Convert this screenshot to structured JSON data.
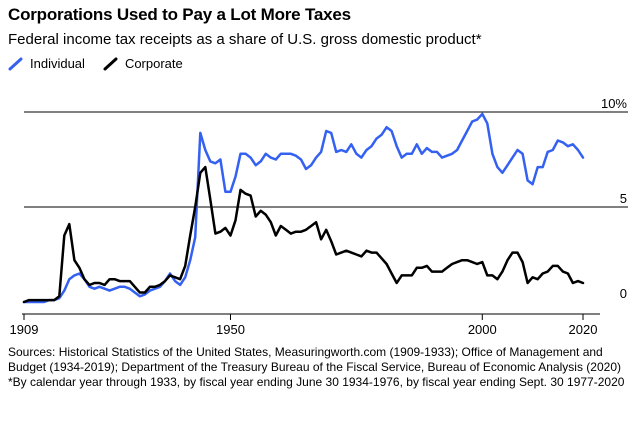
{
  "title": "Corporations Used to Pay a Lot More Taxes",
  "subtitle": "Federal income tax receipts as a share of U.S. gross domestic product*",
  "legend": [
    {
      "label": "Individual",
      "color": "#3461f2"
    },
    {
      "label": "Corporate",
      "color": "#000000"
    }
  ],
  "footer": {
    "sources": "Sources: Historical Statistics of the United States, Measuringworth.com (1909-1933); Office of Management and Budget (1934-2019); Department of the Treasury Bureau of the Fiscal Service, Bureau of Economic Analysis (2020)",
    "note": "*By calendar year through 1933, by fiscal year ending June 30 1934-1976, by fiscal year ending Sept. 30 1977-2020"
  },
  "chart_data": {
    "type": "line",
    "title": "Corporations Used to Pay a Lot More Taxes",
    "xlabel": "",
    "ylabel": "",
    "xlim": [
      1909,
      2020
    ],
    "ylim": [
      0,
      10
    ],
    "x_ticks": [
      {
        "value": 1909,
        "label": "1909"
      },
      {
        "value": 1950,
        "label": "1950"
      },
      {
        "value": 2000,
        "label": "2000"
      },
      {
        "value": 2020,
        "label": "2020"
      }
    ],
    "y_ticks": [
      {
        "value": 0,
        "label": "0"
      },
      {
        "value": 5,
        "label": "5"
      },
      {
        "value": 10,
        "label": "10%"
      }
    ],
    "series": [
      {
        "name": "Individual",
        "color": "#3461f2",
        "points": [
          [
            1909,
            0.0
          ],
          [
            1910,
            0.0
          ],
          [
            1911,
            0.0
          ],
          [
            1912,
            0.0
          ],
          [
            1913,
            0.0
          ],
          [
            1914,
            0.1
          ],
          [
            1915,
            0.1
          ],
          [
            1916,
            0.2
          ],
          [
            1917,
            0.6
          ],
          [
            1918,
            1.2
          ],
          [
            1919,
            1.4
          ],
          [
            1920,
            1.5
          ],
          [
            1921,
            1.2
          ],
          [
            1922,
            0.8
          ],
          [
            1923,
            0.7
          ],
          [
            1924,
            0.8
          ],
          [
            1925,
            0.7
          ],
          [
            1926,
            0.6
          ],
          [
            1927,
            0.7
          ],
          [
            1928,
            0.8
          ],
          [
            1929,
            0.8
          ],
          [
            1930,
            0.7
          ],
          [
            1931,
            0.5
          ],
          [
            1932,
            0.3
          ],
          [
            1933,
            0.4
          ],
          [
            1934,
            0.6
          ],
          [
            1935,
            0.7
          ],
          [
            1936,
            0.8
          ],
          [
            1937,
            1.1
          ],
          [
            1938,
            1.5
          ],
          [
            1939,
            1.1
          ],
          [
            1940,
            0.9
          ],
          [
            1941,
            1.3
          ],
          [
            1942,
            2.2
          ],
          [
            1943,
            3.4
          ],
          [
            1944,
            8.9
          ],
          [
            1945,
            8.0
          ],
          [
            1946,
            7.4
          ],
          [
            1947,
            7.3
          ],
          [
            1948,
            7.5
          ],
          [
            1949,
            5.8
          ],
          [
            1950,
            5.8
          ],
          [
            1951,
            6.6
          ],
          [
            1952,
            7.8
          ],
          [
            1953,
            7.8
          ],
          [
            1954,
            7.6
          ],
          [
            1955,
            7.2
          ],
          [
            1956,
            7.4
          ],
          [
            1957,
            7.8
          ],
          [
            1958,
            7.6
          ],
          [
            1959,
            7.5
          ],
          [
            1960,
            7.8
          ],
          [
            1961,
            7.8
          ],
          [
            1962,
            7.8
          ],
          [
            1963,
            7.7
          ],
          [
            1964,
            7.5
          ],
          [
            1965,
            7.0
          ],
          [
            1966,
            7.2
          ],
          [
            1967,
            7.6
          ],
          [
            1968,
            7.9
          ],
          [
            1969,
            9.0
          ],
          [
            1970,
            8.9
          ],
          [
            1971,
            7.9
          ],
          [
            1972,
            8.0
          ],
          [
            1973,
            7.9
          ],
          [
            1974,
            8.3
          ],
          [
            1975,
            7.8
          ],
          [
            1976,
            7.6
          ],
          [
            1977,
            8.0
          ],
          [
            1978,
            8.2
          ],
          [
            1979,
            8.6
          ],
          [
            1980,
            8.8
          ],
          [
            1981,
            9.2
          ],
          [
            1982,
            9.0
          ],
          [
            1983,
            8.2
          ],
          [
            1984,
            7.6
          ],
          [
            1985,
            7.8
          ],
          [
            1986,
            7.8
          ],
          [
            1987,
            8.3
          ],
          [
            1988,
            7.8
          ],
          [
            1989,
            8.1
          ],
          [
            1990,
            7.9
          ],
          [
            1991,
            7.9
          ],
          [
            1992,
            7.6
          ],
          [
            1993,
            7.7
          ],
          [
            1994,
            7.8
          ],
          [
            1995,
            8.0
          ],
          [
            1996,
            8.5
          ],
          [
            1997,
            9.0
          ],
          [
            1998,
            9.5
          ],
          [
            1999,
            9.6
          ],
          [
            2000,
            9.9
          ],
          [
            2001,
            9.4
          ],
          [
            2002,
            7.8
          ],
          [
            2003,
            7.1
          ],
          [
            2004,
            6.8
          ],
          [
            2005,
            7.2
          ],
          [
            2006,
            7.6
          ],
          [
            2007,
            8.0
          ],
          [
            2008,
            7.8
          ],
          [
            2009,
            6.4
          ],
          [
            2010,
            6.2
          ],
          [
            2011,
            7.1
          ],
          [
            2012,
            7.1
          ],
          [
            2013,
            7.9
          ],
          [
            2014,
            8.0
          ],
          [
            2015,
            8.5
          ],
          [
            2016,
            8.4
          ],
          [
            2017,
            8.2
          ],
          [
            2018,
            8.3
          ],
          [
            2019,
            8.0
          ],
          [
            2020,
            7.6
          ]
        ]
      },
      {
        "name": "Corporate",
        "color": "#000000",
        "points": [
          [
            1909,
            0.0
          ],
          [
            1910,
            0.1
          ],
          [
            1911,
            0.1
          ],
          [
            1912,
            0.1
          ],
          [
            1913,
            0.1
          ],
          [
            1914,
            0.1
          ],
          [
            1915,
            0.1
          ],
          [
            1916,
            0.3
          ],
          [
            1917,
            3.5
          ],
          [
            1918,
            4.1
          ],
          [
            1919,
            2.2
          ],
          [
            1920,
            1.8
          ],
          [
            1921,
            1.2
          ],
          [
            1922,
            0.9
          ],
          [
            1923,
            1.0
          ],
          [
            1924,
            1.0
          ],
          [
            1925,
            0.9
          ],
          [
            1926,
            1.2
          ],
          [
            1927,
            1.2
          ],
          [
            1928,
            1.1
          ],
          [
            1929,
            1.1
          ],
          [
            1930,
            1.1
          ],
          [
            1931,
            0.8
          ],
          [
            1932,
            0.5
          ],
          [
            1933,
            0.5
          ],
          [
            1934,
            0.8
          ],
          [
            1935,
            0.8
          ],
          [
            1936,
            0.9
          ],
          [
            1937,
            1.1
          ],
          [
            1938,
            1.4
          ],
          [
            1939,
            1.3
          ],
          [
            1940,
            1.2
          ],
          [
            1941,
            1.9
          ],
          [
            1942,
            3.5
          ],
          [
            1943,
            5.0
          ],
          [
            1944,
            6.8
          ],
          [
            1945,
            7.1
          ],
          [
            1946,
            5.4
          ],
          [
            1947,
            3.6
          ],
          [
            1948,
            3.7
          ],
          [
            1949,
            3.9
          ],
          [
            1950,
            3.5
          ],
          [
            1951,
            4.3
          ],
          [
            1952,
            5.9
          ],
          [
            1953,
            5.7
          ],
          [
            1954,
            5.6
          ],
          [
            1955,
            4.5
          ],
          [
            1956,
            4.8
          ],
          [
            1957,
            4.6
          ],
          [
            1958,
            4.2
          ],
          [
            1959,
            3.5
          ],
          [
            1960,
            4.0
          ],
          [
            1961,
            3.8
          ],
          [
            1962,
            3.6
          ],
          [
            1963,
            3.7
          ],
          [
            1964,
            3.7
          ],
          [
            1965,
            3.8
          ],
          [
            1966,
            4.0
          ],
          [
            1967,
            4.2
          ],
          [
            1968,
            3.3
          ],
          [
            1969,
            3.8
          ],
          [
            1970,
            3.2
          ],
          [
            1971,
            2.5
          ],
          [
            1972,
            2.6
          ],
          [
            1973,
            2.7
          ],
          [
            1974,
            2.6
          ],
          [
            1975,
            2.5
          ],
          [
            1976,
            2.4
          ],
          [
            1977,
            2.7
          ],
          [
            1978,
            2.6
          ],
          [
            1979,
            2.6
          ],
          [
            1980,
            2.3
          ],
          [
            1981,
            2.0
          ],
          [
            1982,
            1.5
          ],
          [
            1983,
            1.0
          ],
          [
            1984,
            1.4
          ],
          [
            1985,
            1.4
          ],
          [
            1986,
            1.4
          ],
          [
            1987,
            1.8
          ],
          [
            1988,
            1.8
          ],
          [
            1989,
            1.9
          ],
          [
            1990,
            1.6
          ],
          [
            1991,
            1.6
          ],
          [
            1992,
            1.6
          ],
          [
            1993,
            1.8
          ],
          [
            1994,
            2.0
          ],
          [
            1995,
            2.1
          ],
          [
            1996,
            2.2
          ],
          [
            1997,
            2.2
          ],
          [
            1998,
            2.1
          ],
          [
            1999,
            2.0
          ],
          [
            2000,
            2.1
          ],
          [
            2001,
            1.4
          ],
          [
            2002,
            1.4
          ],
          [
            2003,
            1.2
          ],
          [
            2004,
            1.6
          ],
          [
            2005,
            2.2
          ],
          [
            2006,
            2.6
          ],
          [
            2007,
            2.6
          ],
          [
            2008,
            2.1
          ],
          [
            2009,
            1.0
          ],
          [
            2010,
            1.3
          ],
          [
            2011,
            1.2
          ],
          [
            2012,
            1.5
          ],
          [
            2013,
            1.6
          ],
          [
            2014,
            1.9
          ],
          [
            2015,
            1.9
          ],
          [
            2016,
            1.6
          ],
          [
            2017,
            1.5
          ],
          [
            2018,
            1.0
          ],
          [
            2019,
            1.1
          ],
          [
            2020,
            1.0
          ]
        ]
      }
    ]
  }
}
